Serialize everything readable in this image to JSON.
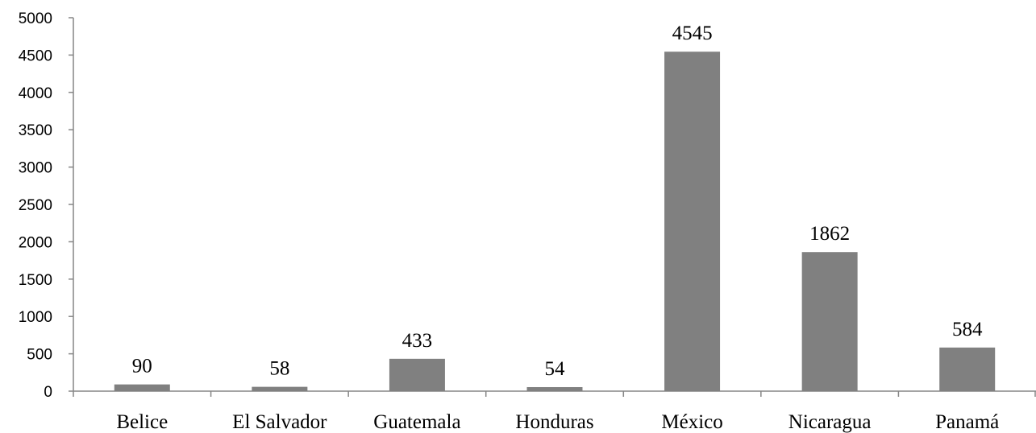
{
  "chart_data": {
    "type": "bar",
    "title": "",
    "xlabel": "",
    "ylabel": "",
    "categories": [
      "Belice",
      "El Salvador",
      "Guatemala",
      "Honduras",
      "México",
      "Nicaragua",
      "Panamá"
    ],
    "values": [
      90,
      58,
      433,
      54,
      4545,
      1862,
      584
    ],
    "data_labels": [
      "90",
      "58",
      "433",
      "54",
      "4545",
      "1862",
      "584"
    ],
    "ylim": [
      0,
      5000
    ],
    "yticks": [
      "0",
      "500",
      "1000",
      "1500",
      "2000",
      "2500",
      "3000",
      "3500",
      "4000",
      "4500",
      "5000"
    ],
    "grid": false,
    "legend": "none",
    "bar_color": "#808080",
    "axis_color": "#868686"
  }
}
